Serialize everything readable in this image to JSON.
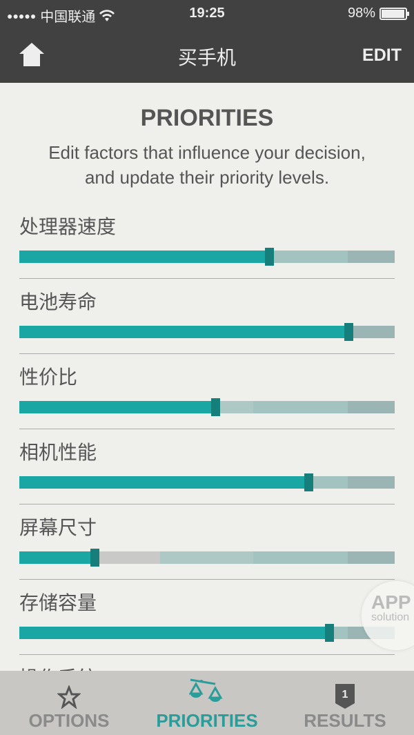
{
  "status_bar": {
    "signal": "●●●●●",
    "carrier": "中国联通",
    "time": "19:25",
    "battery": "98%",
    "battery_level": 0.98
  },
  "nav": {
    "title": "买手机",
    "edit_label": "EDIT",
    "home_icon": "home-icon"
  },
  "main": {
    "heading": "PRIORITIES",
    "description_line1": "Edit factors that influence your decision,",
    "description_line2": "and update their priority levels.",
    "factors": [
      {
        "label": "处理器速度",
        "value": 0.665
      },
      {
        "label": "电池寿命",
        "value": 0.877
      },
      {
        "label": "性价比",
        "value": 0.522
      },
      {
        "label": "相机性能",
        "value": 0.77
      },
      {
        "label": "屏幕尺寸",
        "value": 0.2
      },
      {
        "label": "存储容量",
        "value": 0.825
      },
      {
        "label": "操作系统"
      }
    ]
  },
  "watermark": {
    "line1": "APP",
    "line2": "solution"
  },
  "tabs": [
    {
      "label": "OPTIONS",
      "icon": "star-icon"
    },
    {
      "label": "PRIORITIES",
      "icon": "scale-icon",
      "active": true
    },
    {
      "label": "RESULTS",
      "icon": "badge-icon",
      "badge": "1"
    }
  ],
  "colors": {
    "accent": "#1aa6a3",
    "thumb": "#167f7c",
    "bar": "#414141"
  }
}
